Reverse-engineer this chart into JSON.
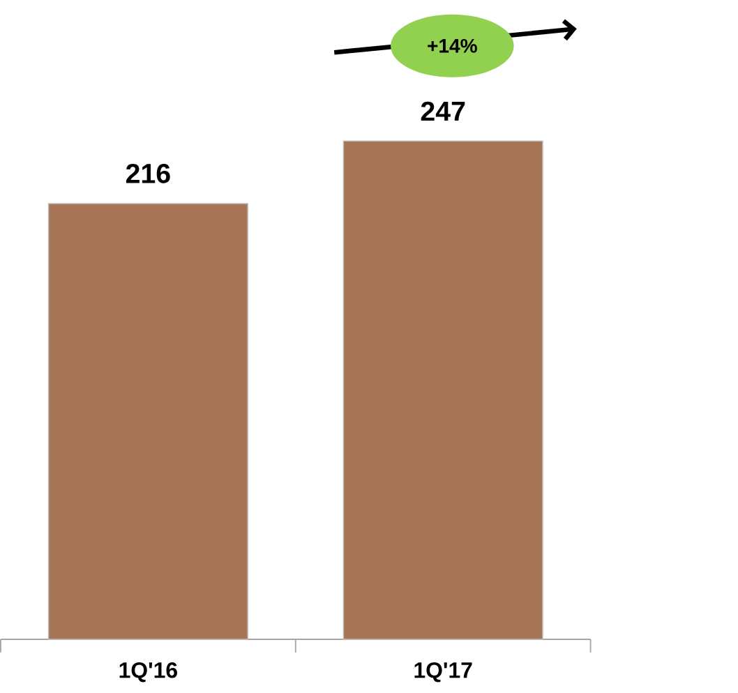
{
  "chart_data": {
    "type": "bar",
    "categories": [
      "1Q'16",
      "1Q'17"
    ],
    "values": [
      216,
      247
    ],
    "color": "#a57555",
    "tick_labels": "x",
    "data_labels": true,
    "annotations": [
      "+14%"
    ]
  }
}
